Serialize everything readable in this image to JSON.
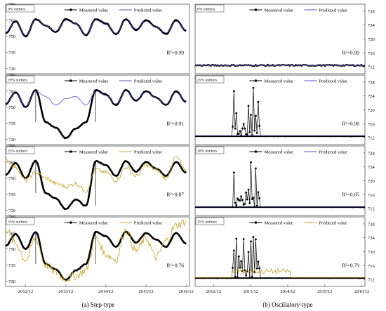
{
  "colors": {
    "measured": "#000000",
    "predicted_blue": "#5555c8",
    "predicted_gold": "#c8a020",
    "frame": "#555555"
  },
  "chart_data": [
    {
      "type": "line",
      "panel_label": "0% outliers",
      "r2": "R²=0.99",
      "ylim": [
        715,
        780
      ],
      "yticks": [
        "720",
        "735",
        "750",
        "765",
        "780"
      ],
      "legend": [
        "Measured value",
        "Predicted value"
      ],
      "predicted_color": "blue",
      "x": [
        "2012/06",
        "2012/09",
        "2012/12",
        "2013/03",
        "2013/06",
        "2013/09",
        "2013/12",
        "2014/03",
        "2014/06",
        "2014/09",
        "2014/12",
        "2015/03",
        "2015/06",
        "2015/09",
        "2015/12",
        "2016/03",
        "2016/06",
        "2016/09",
        "2016/12"
      ],
      "series": [
        {
          "name": "Measured value",
          "values": [
            753,
            764,
            750,
            766,
            760,
            754,
            766,
            762,
            751,
            766,
            762,
            752,
            766,
            756,
            765,
            759,
            752,
            765,
            755
          ]
        },
        {
          "name": "Predicted value",
          "values": [
            754,
            763,
            751,
            765,
            760,
            755,
            765,
            762,
            752,
            765,
            761,
            753,
            765,
            757,
            764,
            759,
            753,
            764,
            756
          ]
        }
      ]
    },
    {
      "type": "line",
      "panel_label": "20% outliers",
      "r2": "R²=0.91",
      "ylim": [
        715,
        780
      ],
      "yticks": [
        "720",
        "735",
        "750",
        "765",
        "780"
      ],
      "legend": [
        "Measured value",
        "Predicted value"
      ],
      "predicted_color": "blue",
      "x": [
        "2012/06",
        "2012/09",
        "2012/12",
        "2013/03",
        "2013/06",
        "2013/09",
        "2013/12",
        "2014/03",
        "2014/06",
        "2014/09",
        "2014/12",
        "2015/03",
        "2015/06",
        "2015/09",
        "2015/12",
        "2016/03",
        "2016/06",
        "2016/09",
        "2016/12"
      ],
      "series": [
        {
          "name": "Measured value",
          "values": [
            753,
            764,
            750,
            766,
            736,
            731,
            721,
            730,
            736,
            766,
            762,
            752,
            766,
            756,
            765,
            759,
            752,
            765,
            755
          ]
        },
        {
          "name": "Predicted value",
          "values": [
            754,
            763,
            751,
            765,
            760,
            752,
            758,
            760,
            752,
            765,
            761,
            753,
            765,
            757,
            764,
            759,
            753,
            764,
            756
          ]
        }
      ]
    },
    {
      "type": "line",
      "panel_label": "25% outliers",
      "r2": "R²=0.87",
      "ylim": [
        715,
        780
      ],
      "yticks": [
        "720",
        "735",
        "750",
        "765",
        "780"
      ],
      "legend": [
        "Measured value",
        "Predicted value"
      ],
      "predicted_color": "gold",
      "x": [
        "2012/06",
        "2012/09",
        "2012/12",
        "2013/03",
        "2013/06",
        "2013/09",
        "2013/12",
        "2014/03",
        "2014/06",
        "2014/09",
        "2014/12",
        "2015/03",
        "2015/06",
        "2015/09",
        "2015/12",
        "2016/03",
        "2016/06",
        "2016/09",
        "2016/12"
      ],
      "series": [
        {
          "name": "Measured value",
          "values": [
            753,
            764,
            750,
            766,
            736,
            731,
            721,
            730,
            724,
            766,
            762,
            752,
            766,
            756,
            765,
            759,
            752,
            765,
            755
          ]
        },
        {
          "name": "Predicted value",
          "values": [
            768,
            760,
            748,
            755,
            750,
            745,
            742,
            745,
            738,
            758,
            755,
            748,
            760,
            752,
            762,
            758,
            750,
            770,
            756
          ]
        }
      ]
    },
    {
      "type": "line",
      "panel_label": "35% outliers",
      "r2": "R²=0.76",
      "ylim": [
        715,
        780
      ],
      "yticks": [
        "720",
        "735",
        "750",
        "765",
        "780"
      ],
      "legend": [
        "Measured value",
        "Predicted value"
      ],
      "predicted_color": "gold",
      "x": [
        "2012/06",
        "2012/09",
        "2012/12",
        "2013/03",
        "2013/06",
        "2013/09",
        "2013/12",
        "2014/03",
        "2014/06",
        "2014/09",
        "2014/12",
        "2015/03",
        "2015/06",
        "2015/09",
        "2015/12",
        "2016/03",
        "2016/06",
        "2016/09",
        "2016/12"
      ],
      "series": [
        {
          "name": "Measured value",
          "values": [
            753,
            764,
            750,
            766,
            736,
            731,
            721,
            730,
            736,
            766,
            762,
            752,
            766,
            756,
            765,
            759,
            752,
            765,
            755
          ]
        },
        {
          "name": "Predicted value",
          "values": [
            770,
            755,
            740,
            760,
            735,
            728,
            722,
            725,
            730,
            760,
            745,
            740,
            768,
            748,
            760,
            742,
            758,
            772,
            776
          ]
        }
      ]
    },
    {
      "type": "line",
      "panel_label": "0% outliers",
      "r2": "R²=0.99",
      "ylim": [
        710,
        730
      ],
      "yticks": [
        "712",
        "716",
        "720",
        "724",
        "728"
      ],
      "legend": [
        "Measured value",
        "Predicted value"
      ],
      "predicted_color": "blue",
      "spike_range": null,
      "baseline": 712.4
    },
    {
      "type": "line",
      "panel_label": "25% outliers",
      "r2": "R²=0.90",
      "ylim": [
        710,
        730
      ],
      "yticks": [
        "712",
        "716",
        "720",
        "724",
        "728"
      ],
      "legend": [
        "Measured value",
        "Predicted value"
      ],
      "predicted_color": "blue",
      "spike_range": [
        "2013/06",
        "2014/03"
      ],
      "baseline": 712.4
    },
    {
      "type": "line",
      "panel_label": "30% outliers",
      "r2": "R²=0.85",
      "ylim": [
        710,
        730
      ],
      "yticks": [
        "712",
        "716",
        "720",
        "724",
        "728"
      ],
      "legend": [
        "Measured value",
        "Predicted value"
      ],
      "predicted_color": "blue",
      "spike_range": [
        "2013/06",
        "2014/03"
      ],
      "baseline": 712.4
    },
    {
      "type": "line",
      "panel_label": "35% outliers",
      "r2": "R²=0.79",
      "ylim": [
        710,
        730
      ],
      "yticks": [
        "712",
        "716",
        "720",
        "724",
        "728"
      ],
      "legend": [
        "Measured value",
        "Predicted value"
      ],
      "predicted_color": "gold",
      "spike_range": [
        "2013/06",
        "2014/03"
      ],
      "baseline": 712.4
    }
  ],
  "x_axis": {
    "left_ticks": [
      "2012/12",
      "2013/12",
      "2014/12",
      "2015/12",
      "2016/12"
    ],
    "right_ticks": [
      "2012/12",
      "2013/12",
      "2014/12",
      "2015/12",
      "2016/12"
    ],
    "range": [
      "2012/06",
      "2017/01"
    ]
  },
  "captions": {
    "left": "(a) Step-type",
    "right": "(b) Oscillatory-type"
  }
}
